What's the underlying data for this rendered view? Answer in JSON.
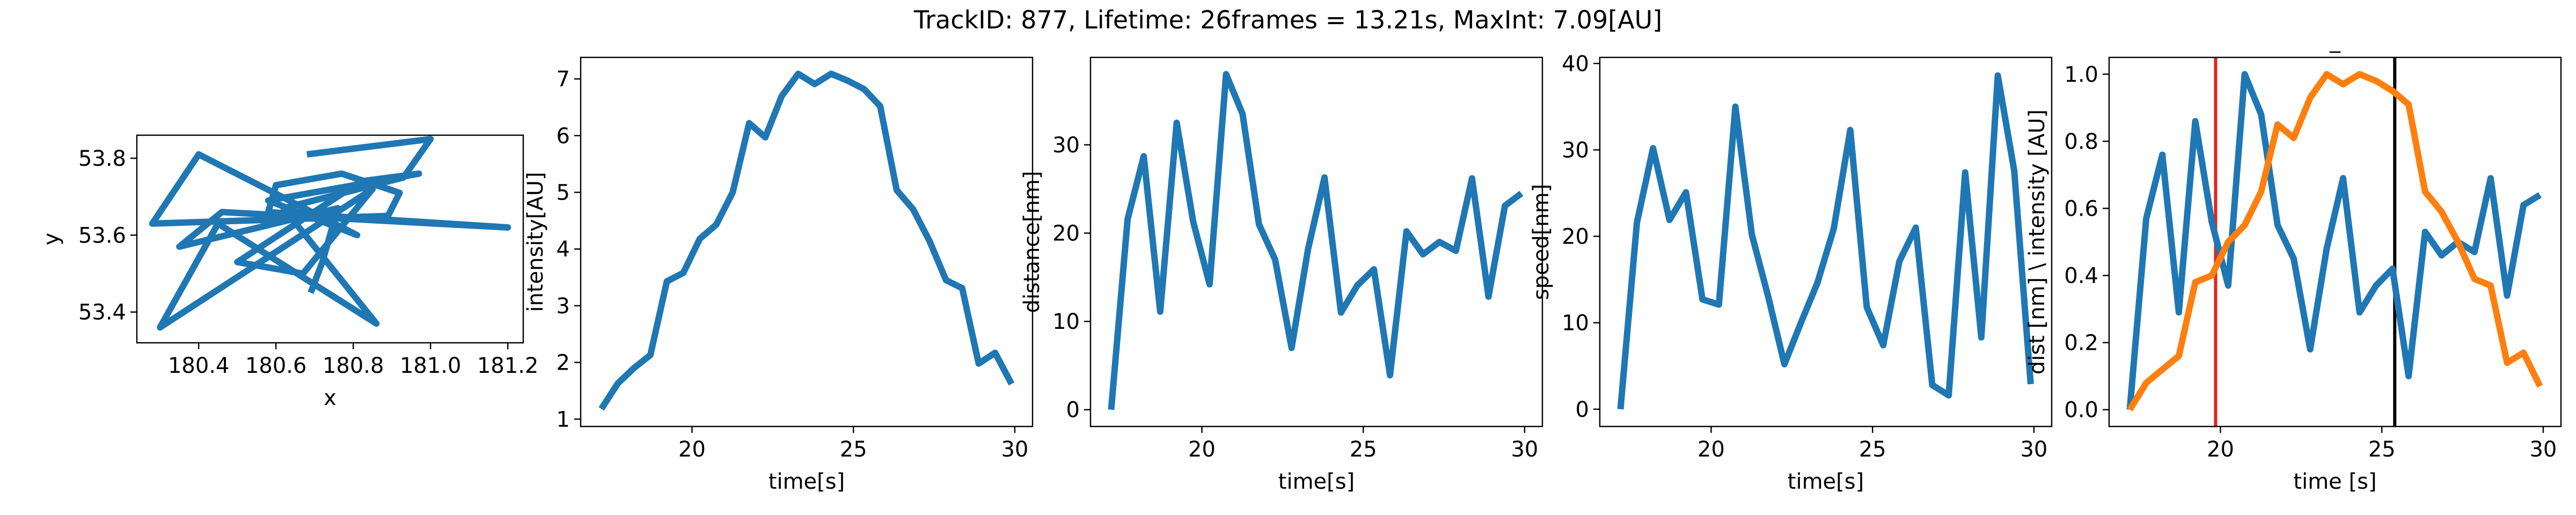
{
  "suptitle": "TrackID: 877, Lifetime: 26frames = 13.21s, MaxInt: 7.09[AU]",
  "colors": {
    "blue": "#1f77b4",
    "orange": "#ff7f0e",
    "red": "#e8221b",
    "black": "#000000"
  },
  "chart_data": [
    {
      "type": "line",
      "title": "",
      "xlabel": "x",
      "ylabel": "y",
      "xlim": [
        180.24,
        181.24
      ],
      "ylim": [
        53.32,
        53.86
      ],
      "xticks": [
        180.4,
        180.6,
        180.8,
        181.0,
        181.2
      ],
      "xtick_labels": [
        "180.4",
        "180.6",
        "180.8",
        "181.0",
        "181.2"
      ],
      "yticks": [
        53.4,
        53.6,
        53.8
      ],
      "ytick_labels": [
        "53.4",
        "53.6",
        "53.8"
      ],
      "series": [
        {
          "x": [
            180.69,
            180.72,
            180.76,
            180.35,
            180.46,
            181.2,
            180.58,
            180.6,
            180.77,
            180.92,
            180.89,
            180.28,
            180.4,
            180.81,
            180.58,
            180.97,
            180.82,
            180.5,
            180.67,
            180.85,
            180.3,
            180.45,
            180.86,
            180.62,
            180.93,
            181.0,
            180.68
          ],
          "y": [
            53.45,
            53.53,
            53.67,
            53.57,
            53.66,
            53.62,
            53.66,
            53.73,
            53.76,
            53.71,
            53.65,
            53.63,
            53.81,
            53.6,
            53.69,
            53.76,
            53.74,
            53.53,
            53.5,
            53.72,
            53.36,
            53.63,
            53.37,
            53.67,
            53.75,
            53.85,
            53.81
          ]
        }
      ]
    },
    {
      "type": "line",
      "title": "",
      "xlabel": "time[s]",
      "ylabel": "intensity[AU]",
      "xlim": [
        16.55,
        30.55
      ],
      "ylim": [
        0.87,
        7.38
      ],
      "xticks": [
        20,
        25,
        30
      ],
      "xtick_labels": [
        "20",
        "25",
        "30"
      ],
      "yticks": [
        1,
        2,
        3,
        4,
        5,
        6,
        7
      ],
      "ytick_labels": [
        "1",
        "2",
        "3",
        "4",
        "5",
        "6",
        "7"
      ],
      "series": [
        {
          "x": [
            17.19,
            17.7,
            18.2,
            18.71,
            19.22,
            19.73,
            20.24,
            20.75,
            21.26,
            21.77,
            22.27,
            22.78,
            23.29,
            23.8,
            24.31,
            24.82,
            25.33,
            25.83,
            26.34,
            26.85,
            27.36,
            27.87,
            28.37,
            28.88,
            29.39,
            29.9
          ],
          "y": [
            1.18,
            1.63,
            1.9,
            2.13,
            3.43,
            3.58,
            4.18,
            4.43,
            5.0,
            6.22,
            5.97,
            6.7,
            7.09,
            6.91,
            7.09,
            6.97,
            6.82,
            6.52,
            5.04,
            4.7,
            4.14,
            3.45,
            3.31,
            1.98,
            2.17,
            1.62
          ]
        }
      ]
    },
    {
      "type": "line",
      "title": "",
      "xlabel": "time[s]",
      "ylabel": "distance[nm]",
      "xlim": [
        16.55,
        30.55
      ],
      "ylim": [
        -1.9,
        39.9
      ],
      "xticks": [
        20,
        25,
        30
      ],
      "xtick_labels": [
        "20",
        "25",
        "30"
      ],
      "yticks": [
        0,
        10,
        20,
        30
      ],
      "ytick_labels": [
        "0",
        "10",
        "20",
        "30"
      ],
      "series": [
        {
          "x": [
            17.19,
            17.7,
            18.2,
            18.71,
            19.22,
            19.73,
            20.24,
            20.75,
            21.26,
            21.77,
            22.27,
            22.78,
            23.29,
            23.8,
            24.31,
            24.82,
            25.33,
            25.83,
            26.34,
            26.85,
            27.36,
            27.87,
            28.37,
            28.88,
            29.39,
            29.9
          ],
          "y": [
            0,
            21.6,
            28.7,
            11.1,
            32.5,
            21.3,
            14.2,
            38.0,
            33.5,
            21.0,
            17.0,
            7.0,
            18.2,
            26.3,
            11.0,
            14.1,
            15.9,
            3.9,
            20.2,
            17.6,
            19.0,
            18.0,
            26.2,
            12.8,
            23.1,
            24.5
          ]
        }
      ]
    },
    {
      "type": "line",
      "title": "",
      "xlabel": "time[s]",
      "ylabel": "speed[nm]",
      "xlim": [
        16.55,
        30.55
      ],
      "ylim": [
        -2.0,
        40.7
      ],
      "xticks": [
        20,
        25,
        30
      ],
      "xtick_labels": [
        "20",
        "25",
        "30"
      ],
      "yticks": [
        0,
        10,
        20,
        30,
        40
      ],
      "ytick_labels": [
        "0",
        "10",
        "20",
        "30",
        "40"
      ],
      "series": [
        {
          "x": [
            17.19,
            17.7,
            18.2,
            18.71,
            19.22,
            19.73,
            20.24,
            20.75,
            21.26,
            21.77,
            22.27,
            22.78,
            23.29,
            23.8,
            24.31,
            24.82,
            25.33,
            25.83,
            26.34,
            26.85,
            27.36,
            27.87,
            28.37,
            28.88,
            29.39,
            29.9
          ],
          "y": [
            0,
            21.6,
            30.2,
            21.9,
            25.1,
            12.7,
            12.1,
            35.0,
            20.2,
            13.0,
            5.2,
            10.0,
            14.6,
            20.9,
            32.3,
            11.8,
            7.4,
            17.1,
            21.0,
            2.8,
            1.6,
            27.4,
            8.3,
            38.6,
            27.6,
            2.9
          ]
        }
      ]
    },
    {
      "type": "line",
      "title": "_",
      "xlabel": "time [s]",
      "ylabel": "dist [nm] \\ intensity [AU]",
      "xlim": [
        16.55,
        30.55
      ],
      "ylim": [
        -0.05,
        1.05
      ],
      "xticks": [
        20,
        25,
        30
      ],
      "xtick_labels": [
        "20",
        "25",
        "30"
      ],
      "yticks": [
        0.0,
        0.2,
        0.4,
        0.6,
        0.8,
        1.0
      ],
      "ytick_labels": [
        "0.0",
        "0.2",
        "0.4",
        "0.6",
        "0.8",
        "1.0"
      ],
      "vlines": [
        {
          "x": 19.85,
          "color": "#e8221b"
        },
        {
          "x": 25.4,
          "color": "#000000"
        }
      ],
      "series": [
        {
          "color": "#1f77b4",
          "x": [
            17.19,
            17.7,
            18.2,
            18.71,
            19.22,
            19.73,
            20.24,
            20.75,
            21.26,
            21.77,
            22.27,
            22.78,
            23.29,
            23.8,
            24.31,
            24.82,
            25.33,
            25.83,
            26.34,
            26.85,
            27.36,
            27.87,
            28.37,
            28.88,
            29.39,
            29.9
          ],
          "y": [
            0,
            0.57,
            0.76,
            0.29,
            0.86,
            0.56,
            0.37,
            1.0,
            0.88,
            0.55,
            0.45,
            0.18,
            0.48,
            0.69,
            0.29,
            0.37,
            0.42,
            0.1,
            0.53,
            0.46,
            0.5,
            0.47,
            0.69,
            0.34,
            0.61,
            0.64
          ]
        },
        {
          "color": "#ff7f0e",
          "x": [
            17.19,
            17.7,
            18.2,
            18.71,
            19.22,
            19.73,
            20.24,
            20.75,
            21.26,
            21.77,
            22.27,
            22.78,
            23.29,
            23.8,
            24.31,
            24.82,
            25.33,
            25.83,
            26.34,
            26.85,
            27.36,
            27.87,
            28.37,
            28.88,
            29.39,
            29.9
          ],
          "y": [
            0.0,
            0.08,
            0.12,
            0.16,
            0.38,
            0.4,
            0.5,
            0.55,
            0.65,
            0.85,
            0.81,
            0.93,
            1.0,
            0.97,
            1.0,
            0.98,
            0.95,
            0.91,
            0.65,
            0.59,
            0.5,
            0.39,
            0.37,
            0.14,
            0.17,
            0.07
          ]
        }
      ]
    }
  ]
}
